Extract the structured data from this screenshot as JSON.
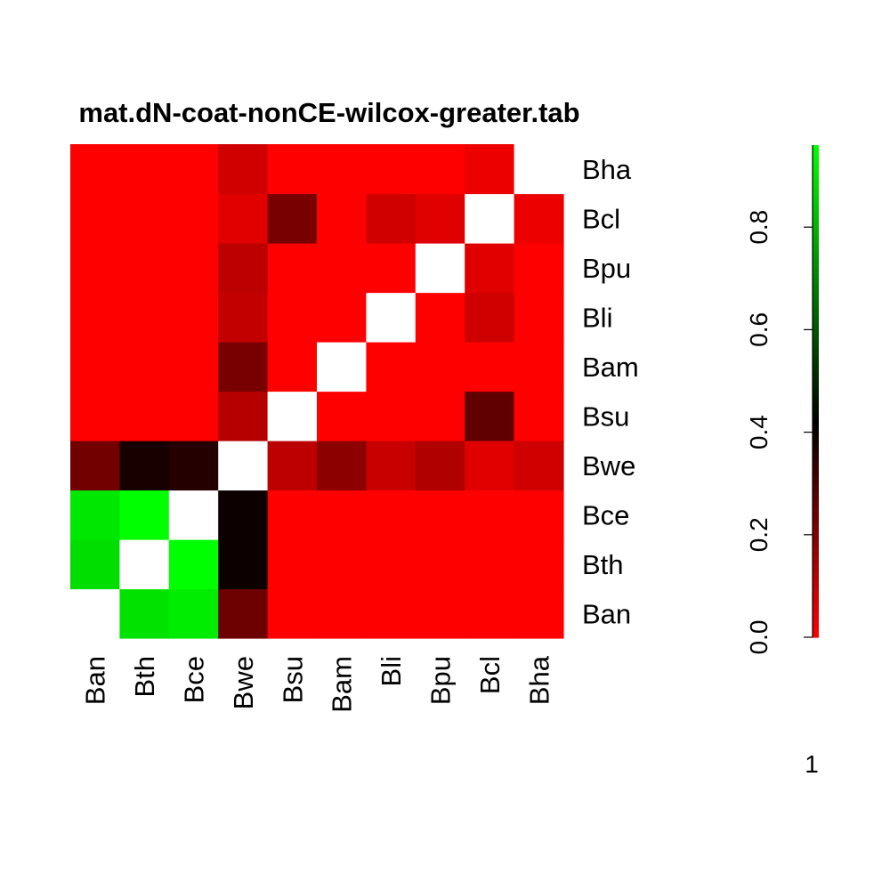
{
  "chart_data": {
    "type": "heatmap",
    "title": "mat.dN-coat-nonCE-wilcox-greater.tab",
    "x_labels": [
      "Ban",
      "Bth",
      "Bce",
      "Bwe",
      "Bsu",
      "Bam",
      "Bli",
      "Bpu",
      "Bcl",
      "Bha"
    ],
    "y_labels_bottom_to_top": [
      "Ban",
      "Bth",
      "Bce",
      "Bwe",
      "Bsu",
      "Bam",
      "Bli",
      "Bpu",
      "Bcl",
      "Bha"
    ],
    "values_rows_bottom_to_top": [
      [
        null,
        0.9,
        0.92,
        0.24,
        0.0,
        0.0,
        0.0,
        0.0,
        0.0,
        0.0
      ],
      [
        0.89,
        null,
        0.96,
        0.4,
        0.0,
        0.0,
        0.0,
        0.0,
        0.0,
        0.0
      ],
      [
        0.91,
        0.97,
        null,
        0.4,
        0.0,
        0.0,
        0.0,
        0.0,
        0.0,
        0.0
      ],
      [
        0.23,
        0.38,
        0.36,
        null,
        0.11,
        0.19,
        0.09,
        0.13,
        0.05,
        0.08
      ],
      [
        0.0,
        0.0,
        0.0,
        0.12,
        null,
        0.0,
        0.0,
        0.0,
        0.26,
        0.0
      ],
      [
        0.0,
        0.0,
        0.0,
        0.22,
        0.0,
        null,
        0.0,
        0.0,
        0.0,
        0.0
      ],
      [
        0.0,
        0.0,
        0.0,
        0.1,
        0.0,
        0.0,
        null,
        0.0,
        0.08,
        0.0
      ],
      [
        0.0,
        0.0,
        0.0,
        0.11,
        0.0,
        0.0,
        0.0,
        null,
        0.05,
        0.0
      ],
      [
        0.0,
        0.0,
        0.0,
        0.05,
        0.22,
        0.0,
        0.08,
        0.05,
        null,
        0.03
      ],
      [
        0.0,
        0.0,
        0.0,
        0.08,
        0.0,
        0.0,
        0.0,
        0.0,
        0.03,
        null
      ]
    ],
    "colorbar": {
      "ticks": [
        "0.0",
        "0.2",
        "0.4",
        "0.6",
        "0.8"
      ],
      "tick_values": [
        0.0,
        0.2,
        0.4,
        0.6,
        0.8
      ],
      "range": [
        0,
        0.96
      ],
      "colors": {
        "low": "#ff0000",
        "mid": "#000000",
        "high": "#00ff00"
      },
      "mid_value": 0.42
    },
    "footer_text": "1",
    "missing_color": "#ffffff"
  }
}
